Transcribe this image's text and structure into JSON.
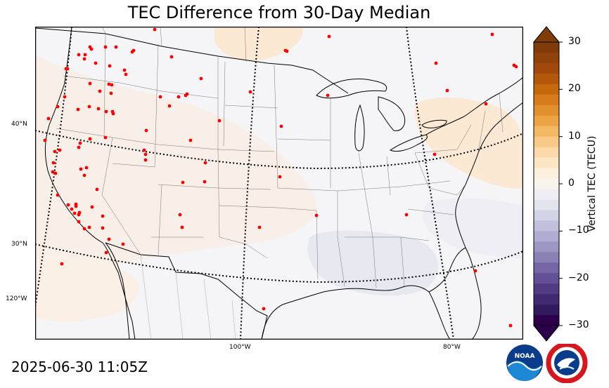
{
  "title": "TEC Difference from 30-Day Median",
  "timestamp": "2025-06-30 11:05Z",
  "colorbar": {
    "label": "Vertical TEC (TECU)",
    "ticks": [
      "30",
      "20",
      "10",
      "0",
      "−10",
      "−20",
      "−30"
    ],
    "colors_top_to_bottom": [
      "#7f3b08",
      "#8f4209",
      "#a0490a",
      "#b3580b",
      "#c56a0c",
      "#d67c1a",
      "#e28f2e",
      "#eca445",
      "#f3b864",
      "#f8c987",
      "#fbd9a8",
      "#fde6c4",
      "#fcefdc",
      "#f7f4ee",
      "#efeff3",
      "#e3e3ee",
      "#d3d3e6",
      "#c2c0dc",
      "#b0acd1",
      "#9d97c4",
      "#8a81b5",
      "#7766a6",
      "#645096",
      "#523b85",
      "#412a72",
      "#311a5d",
      "#2d004b"
    ]
  },
  "graticule": {
    "latitudes": [
      "40°N",
      "30°N"
    ],
    "longitudes": [
      "120°W",
      "100°W",
      "80°W"
    ]
  },
  "logos": {
    "noaa": "NOAA",
    "nws": "NATIONAL WEATHER SERVICE"
  },
  "colors": {
    "background": "#f5f4f6",
    "warm_patch": "#fdecd8",
    "cool_patch": "#e8e8f1",
    "station": "#ff0000"
  }
}
